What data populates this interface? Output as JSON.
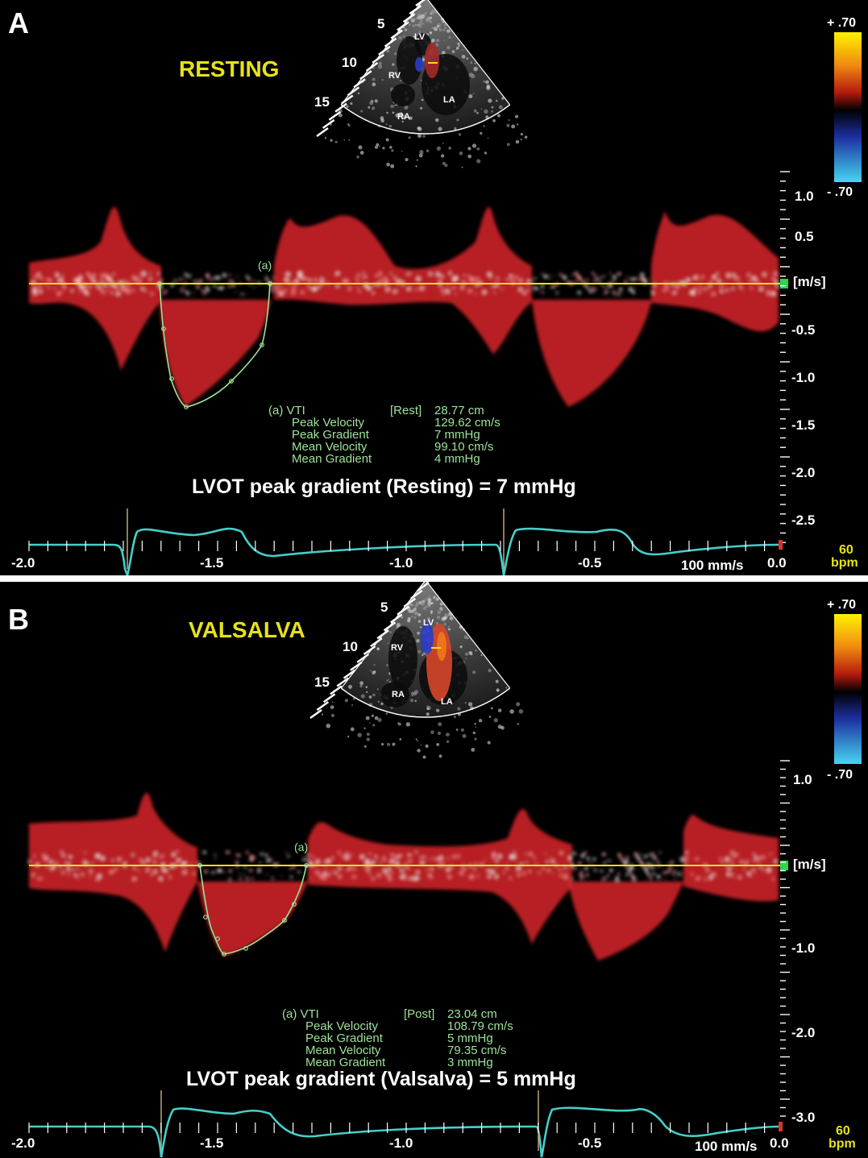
{
  "panels": [
    {
      "label": "A",
      "title": "RESTING",
      "sector_labels": {
        "depth": [
          "5",
          "10",
          "15"
        ],
        "chambers": [
          "LV",
          "RV",
          "LA",
          "RA"
        ]
      },
      "colorbar": {
        "top": "+ .70",
        "bottom": "- .70",
        "colors": [
          "#fff200",
          "#b51b0e",
          "#000000",
          "#1d2fa0",
          "#46d6f0"
        ]
      },
      "velocity_unit": "[m/s]",
      "velocity_labels": [
        "1.0",
        "0.5",
        "-0.5",
        "-1.0",
        "-1.5",
        "-2.0",
        "-2.5"
      ],
      "trace_marker": "(a)",
      "measurements": {
        "header_label": "(a) VTI",
        "header_tag": "[Rest]",
        "header_value": "28.77 cm",
        "rows": [
          {
            "name": "Peak Velocity",
            "value": "129.62 cm/s"
          },
          {
            "name": "Peak Gradient",
            "value": "7 mmHg"
          },
          {
            "name": "Mean Velocity",
            "value": "99.10 cm/s"
          },
          {
            "name": "Mean Gradient",
            "value": "4 mmHg"
          }
        ]
      },
      "caption": "LVOT peak gradient (Resting) = 7 mmHg",
      "time_labels": [
        "-2.0",
        "-1.5",
        "-1.0",
        "-0.5",
        "0.0"
      ],
      "sweep": "100 mm/s",
      "hr_value": "60",
      "hr_unit": "bpm"
    },
    {
      "label": "B",
      "title": "VALSALVA",
      "sector_labels": {
        "depth": [
          "5",
          "10",
          "15"
        ],
        "chambers": [
          "LV",
          "RV",
          "LA",
          "RA"
        ]
      },
      "colorbar": {
        "top": "+ .70",
        "bottom": "- .70",
        "colors": [
          "#fff200",
          "#b51b0e",
          "#000000",
          "#1d2fa0",
          "#46d6f0"
        ]
      },
      "velocity_unit": "[m/s]",
      "velocity_labels": [
        "1.0",
        "-1.0",
        "-2.0",
        "-3.0"
      ],
      "trace_marker": "(a)",
      "measurements": {
        "header_label": "(a) VTI",
        "header_tag": "[Post]",
        "header_value": "23.04 cm",
        "rows": [
          {
            "name": "Peak Velocity",
            "value": "108.79 cm/s"
          },
          {
            "name": "Peak Gradient",
            "value": "5 mmHg"
          },
          {
            "name": "Mean Velocity",
            "value": "79.35 cm/s"
          },
          {
            "name": "Mean Gradient",
            "value": "3 mmHg"
          }
        ]
      },
      "caption": "LVOT peak gradient (Valsalva) = 5 mmHg",
      "time_labels": [
        "-2.0",
        "-1.5",
        "-1.0",
        "-0.5",
        "0.0"
      ],
      "sweep": "100 mm/s",
      "hr_value": "60",
      "hr_unit": "bpm"
    }
  ]
}
